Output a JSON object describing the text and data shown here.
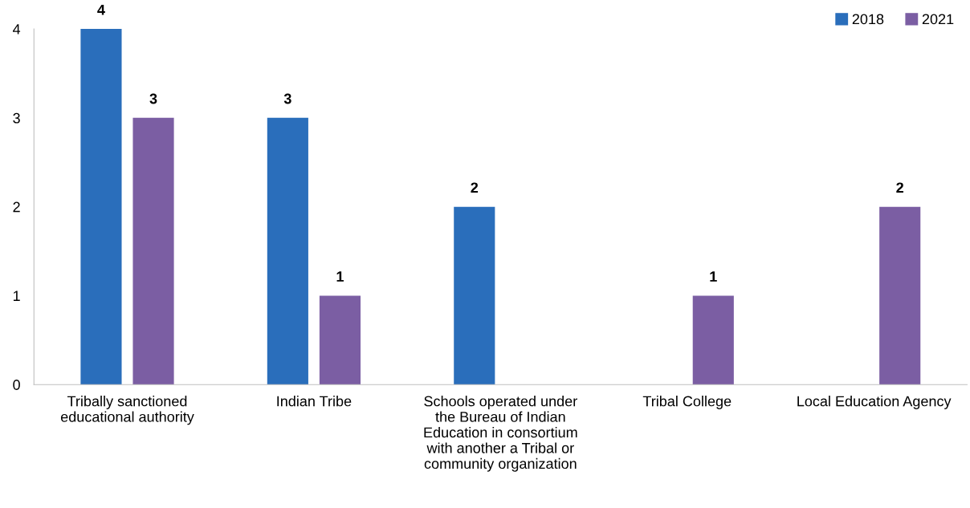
{
  "chart_data": {
    "type": "bar",
    "categories": [
      "Tribally sanctioned\neducational authority",
      "Indian Tribe",
      "Schools operated under\nthe Bureau of Indian\nEducation in consortium\nwith another a Tribal or\ncommunity organization",
      "Tribal College",
      "Local Education Agency"
    ],
    "series": [
      {
        "name": "2018",
        "color": "#2a6ebb",
        "values": [
          4,
          3,
          2,
          null,
          null
        ]
      },
      {
        "name": "2021",
        "color": "#7b5ea3",
        "values": [
          3,
          1,
          null,
          1,
          2
        ]
      }
    ],
    "ylim": [
      0,
      4
    ],
    "yticks": [
      0,
      1,
      2,
      3,
      4
    ],
    "grid": false,
    "legend": "top right",
    "data_labels": true
  }
}
